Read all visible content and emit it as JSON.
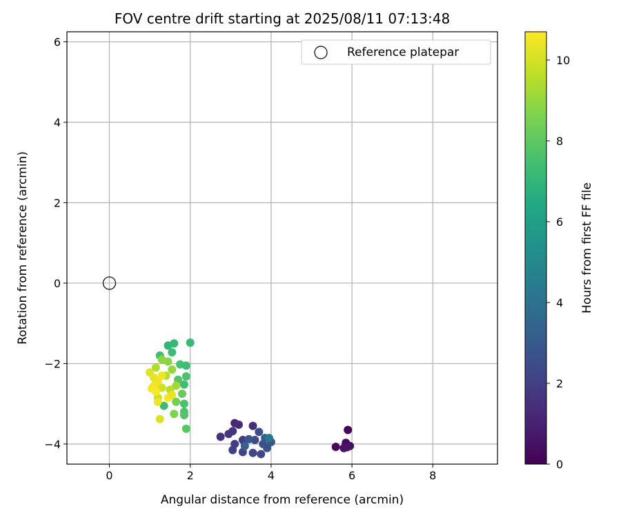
{
  "chart_data": {
    "type": "scatter",
    "title": "FOV centre drift starting at 2025/08/11 07:13:48",
    "xlabel": "Angular distance from reference (arcmin)",
    "ylabel": "Rotation from reference (arcmin)",
    "xlim": [
      -1.05,
      9.6
    ],
    "ylim": [
      -4.5,
      6.25
    ],
    "xticks": [
      0,
      2,
      4,
      6,
      8
    ],
    "yticks": [
      -4,
      -2,
      0,
      2,
      4,
      6
    ],
    "grid": true,
    "legend": {
      "placement": "top-right",
      "entries": [
        {
          "label": "Reference platepar",
          "marker": "open-circle",
          "color": "#000000"
        }
      ]
    },
    "reference_point": {
      "x": 0,
      "y": 0
    },
    "colorbar": {
      "label": "Hours from first FF file",
      "colormap": "viridis",
      "range": [
        0,
        10.7
      ],
      "ticks": [
        0,
        2,
        4,
        6,
        8,
        10
      ]
    },
    "series": [
      {
        "color_by": "hours",
        "points": [
          {
            "x": 5.9,
            "y": -3.65,
            "c": 0.1
          },
          {
            "x": 5.6,
            "y": -4.07,
            "c": 0.2
          },
          {
            "x": 5.85,
            "y": -3.97,
            "c": 0.3
          },
          {
            "x": 5.95,
            "y": -4.05,
            "c": 0.4
          },
          {
            "x": 5.8,
            "y": -4.1,
            "c": 0.5
          },
          {
            "x": 5.88,
            "y": -4.08,
            "c": 0.6
          },
          {
            "x": 3.1,
            "y": -3.48,
            "c": 1.2
          },
          {
            "x": 3.2,
            "y": -3.52,
            "c": 1.3
          },
          {
            "x": 3.55,
            "y": -3.55,
            "c": 1.4
          },
          {
            "x": 2.75,
            "y": -3.82,
            "c": 1.5
          },
          {
            "x": 2.95,
            "y": -3.75,
            "c": 1.6
          },
          {
            "x": 3.05,
            "y": -3.68,
            "c": 1.7
          },
          {
            "x": 3.3,
            "y": -3.9,
            "c": 1.8
          },
          {
            "x": 3.1,
            "y": -4.0,
            "c": 1.9
          },
          {
            "x": 3.05,
            "y": -4.15,
            "c": 2.0
          },
          {
            "x": 3.3,
            "y": -4.2,
            "c": 2.1
          },
          {
            "x": 3.55,
            "y": -4.22,
            "c": 2.2
          },
          {
            "x": 3.75,
            "y": -4.25,
            "c": 2.3
          },
          {
            "x": 3.6,
            "y": -3.9,
            "c": 2.4
          },
          {
            "x": 3.7,
            "y": -3.7,
            "c": 2.5
          },
          {
            "x": 3.8,
            "y": -4.0,
            "c": 2.6
          },
          {
            "x": 3.9,
            "y": -4.1,
            "c": 2.7
          },
          {
            "x": 4.0,
            "y": -3.95,
            "c": 2.8
          },
          {
            "x": 3.45,
            "y": -3.88,
            "c": 2.9
          },
          {
            "x": 3.85,
            "y": -3.85,
            "c": 3.1
          },
          {
            "x": 3.35,
            "y": -4.05,
            "c": 3.3
          },
          {
            "x": 3.95,
            "y": -3.85,
            "c": 4.3
          },
          {
            "x": 1.45,
            "y": -1.55,
            "c": 7.0
          },
          {
            "x": 1.6,
            "y": -1.5,
            "c": 7.1
          },
          {
            "x": 2.0,
            "y": -1.48,
            "c": 7.2
          },
          {
            "x": 1.55,
            "y": -1.72,
            "c": 7.3
          },
          {
            "x": 1.25,
            "y": -1.8,
            "c": 7.4
          },
          {
            "x": 1.75,
            "y": -2.02,
            "c": 7.5
          },
          {
            "x": 1.9,
            "y": -2.05,
            "c": 7.3
          },
          {
            "x": 1.9,
            "y": -2.32,
            "c": 7.6
          },
          {
            "x": 1.85,
            "y": -2.52,
            "c": 7.4
          },
          {
            "x": 1.85,
            "y": -3.0,
            "c": 7.6
          },
          {
            "x": 1.85,
            "y": -3.2,
            "c": 7.7
          },
          {
            "x": 1.85,
            "y": -3.28,
            "c": 7.8
          },
          {
            "x": 1.9,
            "y": -3.62,
            "c": 7.9
          },
          {
            "x": 1.35,
            "y": -3.05,
            "c": 7.2
          },
          {
            "x": 1.7,
            "y": -2.4,
            "c": 7.8
          },
          {
            "x": 1.8,
            "y": -2.75,
            "c": 8.2
          },
          {
            "x": 1.65,
            "y": -2.95,
            "c": 8.4
          },
          {
            "x": 1.6,
            "y": -3.25,
            "c": 8.6
          },
          {
            "x": 1.45,
            "y": -1.95,
            "c": 8.8
          },
          {
            "x": 1.3,
            "y": -1.9,
            "c": 8.9
          },
          {
            "x": 1.55,
            "y": -2.15,
            "c": 9.0
          },
          {
            "x": 1.65,
            "y": -2.55,
            "c": 9.2
          },
          {
            "x": 1.15,
            "y": -2.1,
            "c": 9.4
          },
          {
            "x": 1.4,
            "y": -2.3,
            "c": 9.5
          },
          {
            "x": 1.5,
            "y": -2.65,
            "c": 9.6
          },
          {
            "x": 1.2,
            "y": -2.85,
            "c": 9.8
          },
          {
            "x": 1.3,
            "y": -2.6,
            "c": 9.9
          },
          {
            "x": 1.25,
            "y": -3.38,
            "c": 10.1
          },
          {
            "x": 1.0,
            "y": -2.22,
            "c": 10.2
          },
          {
            "x": 1.1,
            "y": -2.35,
            "c": 10.3
          },
          {
            "x": 1.2,
            "y": -2.45,
            "c": 10.4
          },
          {
            "x": 1.1,
            "y": -2.55,
            "c": 10.5
          },
          {
            "x": 1.05,
            "y": -2.62,
            "c": 10.6
          },
          {
            "x": 1.15,
            "y": -2.7,
            "c": 10.65
          },
          {
            "x": 1.2,
            "y": -2.95,
            "c": 10.4
          },
          {
            "x": 1.45,
            "y": -2.85,
            "c": 10.6
          },
          {
            "x": 1.3,
            "y": -2.3,
            "c": 10.5
          },
          {
            "x": 1.55,
            "y": -2.78,
            "c": 10.3
          }
        ]
      }
    ]
  }
}
